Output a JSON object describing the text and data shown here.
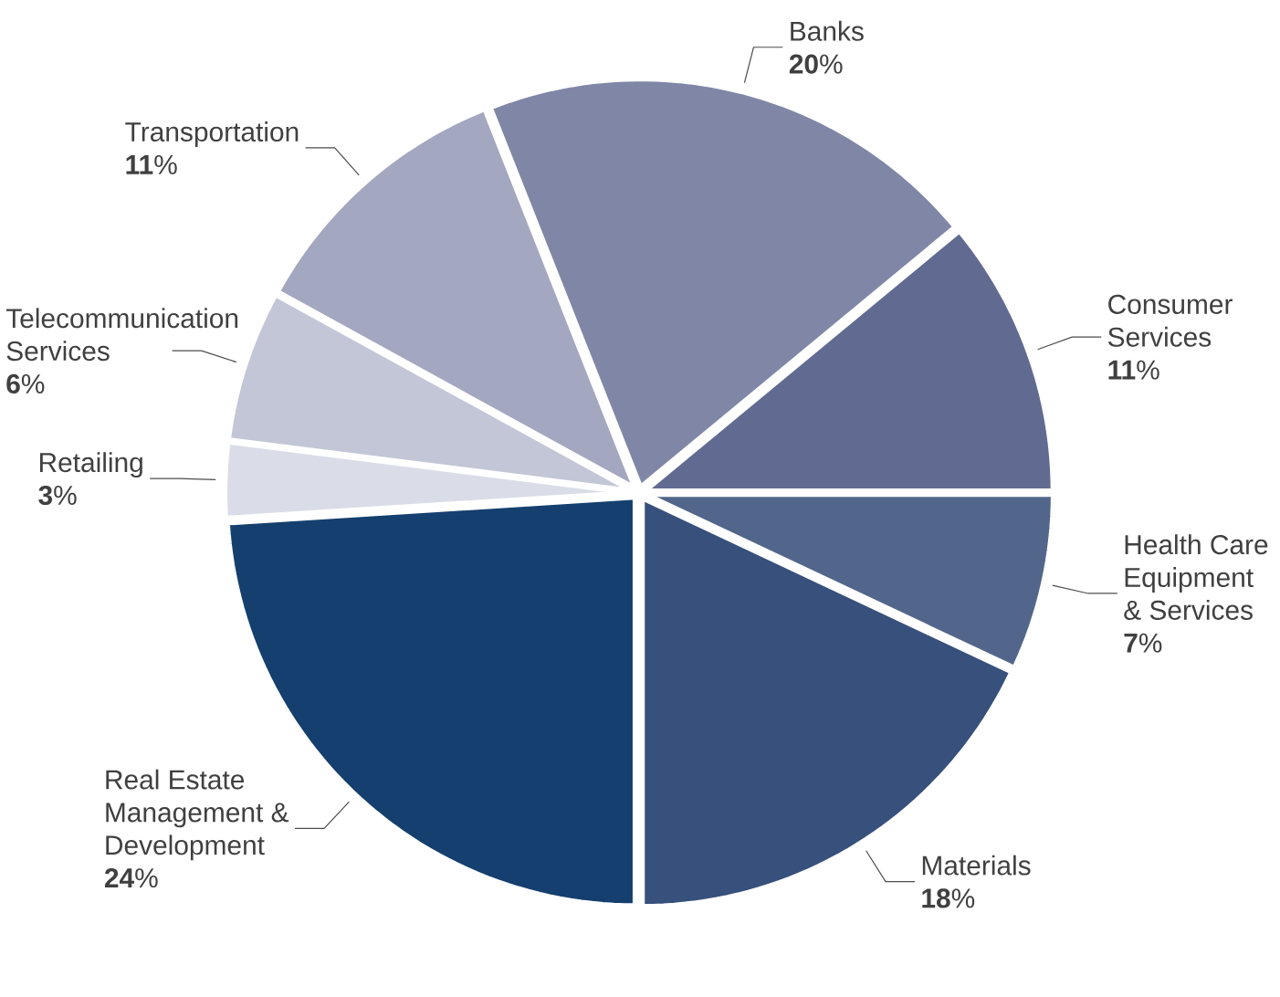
{
  "chart_data": {
    "type": "pie",
    "categories": [
      "Banks",
      "Consumer Services",
      "Health Care Equipment & Services",
      "Materials",
      "Real Estate Management & Development",
      "Retailing",
      "Telecommunication Services",
      "Transportation"
    ],
    "values": [
      20,
      11,
      7,
      18,
      24,
      3,
      6,
      11
    ],
    "value_labels": [
      "**20**%",
      "**11**%",
      "**7**%",
      "**18**%",
      "**24**%",
      "**3**%",
      "**6**%",
      "**11**%"
    ],
    "colors": [
      "#8087a6",
      "#616b91",
      "#52668b",
      "#37507c",
      "#143f6e",
      "#dadde8",
      "#c3c6d6",
      "#a3a7bf"
    ]
  }
}
